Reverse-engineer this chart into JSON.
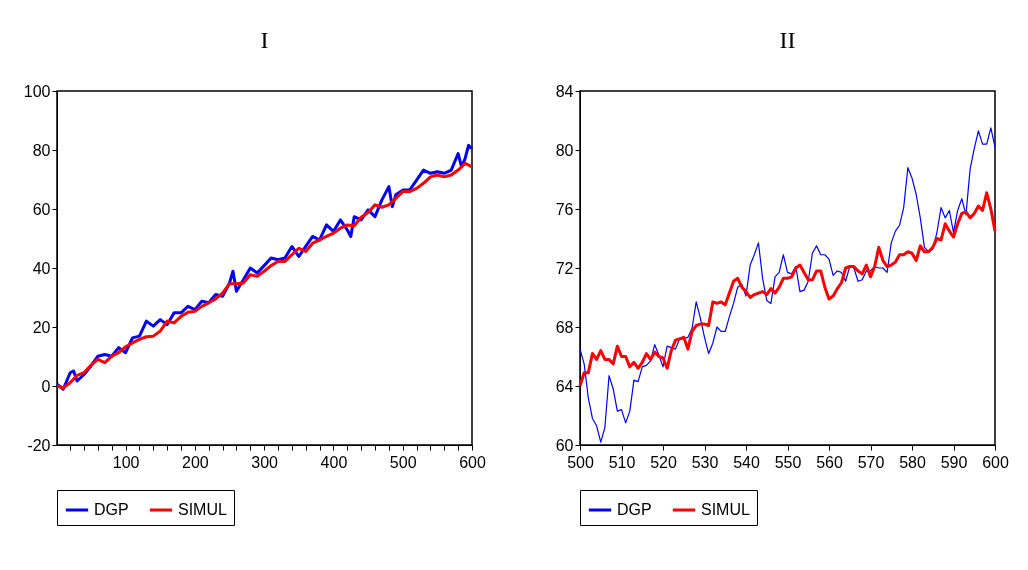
{
  "chart_data": [
    {
      "type": "line",
      "title": "I",
      "x": [
        1,
        10,
        20,
        25,
        30,
        40,
        50,
        60,
        70,
        80,
        90,
        100,
        110,
        120,
        130,
        140,
        150,
        160,
        170,
        180,
        190,
        200,
        210,
        220,
        230,
        240,
        250,
        255,
        260,
        270,
        280,
        290,
        300,
        310,
        320,
        330,
        340,
        350,
        360,
        370,
        380,
        390,
        400,
        410,
        420,
        425,
        430,
        440,
        450,
        460,
        470,
        480,
        485,
        490,
        500,
        510,
        520,
        530,
        540,
        550,
        560,
        570,
        580,
        585,
        590,
        595,
        600
      ],
      "series": [
        {
          "name": "DGP",
          "color": "#0000ff",
          "values": [
            0.6,
            -1.1,
            4.5,
            5.1,
            1.7,
            3.9,
            6.8,
            10.1,
            10.7,
            10.1,
            13,
            11.3,
            16.3,
            16.9,
            22.0,
            20.3,
            22.5,
            20.8,
            24.8,
            24.8,
            27.0,
            25.9,
            28.7,
            28.2,
            31.0,
            30.4,
            34.9,
            38.9,
            32.1,
            36.0,
            40.0,
            38.3,
            40.8,
            43.4,
            42.8,
            43.4,
            47.3,
            43.9,
            47.3,
            50.7,
            49.5,
            54.6,
            52.4,
            56.3,
            52.9,
            50.7,
            57.4,
            56.3,
            59.7,
            57.4,
            63.1,
            67.6,
            60.8,
            64.8,
            66.4,
            66.4,
            69.8,
            73.2,
            72.1,
            72.6,
            72.1,
            73.2,
            78.8,
            74.3,
            77.1,
            81.6,
            80.5
          ]
        },
        {
          "name": "SIMUL",
          "color": "#ff0000",
          "x": [
            1,
            10,
            20,
            30,
            40,
            50,
            60,
            70,
            80,
            90,
            100,
            110,
            120,
            130,
            140,
            150,
            160,
            170,
            180,
            190,
            200,
            210,
            220,
            230,
            240,
            250,
            260,
            270,
            280,
            290,
            300,
            310,
            320,
            330,
            340,
            350,
            360,
            370,
            380,
            390,
            400,
            410,
            420,
            430,
            440,
            450,
            460,
            470,
            480,
            490,
            500,
            510,
            520,
            530,
            540,
            550,
            560,
            570,
            580,
            590,
            600
          ],
          "values": [
            0,
            -0.6,
            1.1,
            3.6,
            4.5,
            7.0,
            9.0,
            7.9,
            10.1,
            11.3,
            13.3,
            14.6,
            15.8,
            16.7,
            16.9,
            18.6,
            22.0,
            21.4,
            23.6,
            25.0,
            25.3,
            27.0,
            28.2,
            29.5,
            31.5,
            34.7,
            34.7,
            34.9,
            37.7,
            37.2,
            38.9,
            40.8,
            42.2,
            42.2,
            44.5,
            46.7,
            45.6,
            48.4,
            49.5,
            50.7,
            51.8,
            53.5,
            54.6,
            54.3,
            57.2,
            58.8,
            61.4,
            60.6,
            61.4,
            63.6,
            65.9,
            65.9,
            67.0,
            68.7,
            70.9,
            71.5,
            70.9,
            71.5,
            73.2,
            75.5,
            74.3
          ]
        }
      ],
      "xlim": [
        1,
        600
      ],
      "xticks": [
        {
          "value": 20,
          "label": null
        },
        {
          "value": 40,
          "label": null
        },
        {
          "value": 60,
          "label": null
        },
        {
          "value": 80,
          "label": null
        },
        100,
        {
          "value": 120,
          "label": null
        },
        {
          "value": 140,
          "label": null
        },
        {
          "value": 160,
          "label": null
        },
        {
          "value": 180,
          "label": null
        },
        200,
        {
          "value": 220,
          "label": null
        },
        {
          "value": 240,
          "label": null
        },
        {
          "value": 260,
          "label": null
        },
        {
          "value": 280,
          "label": null
        },
        300,
        {
          "value": 320,
          "label": null
        },
        {
          "value": 340,
          "label": null
        },
        {
          "value": 360,
          "label": null
        },
        {
          "value": 380,
          "label": null
        },
        400,
        {
          "value": 420,
          "label": null
        },
        {
          "value": 440,
          "label": null
        },
        {
          "value": 460,
          "label": null
        },
        {
          "value": 480,
          "label": null
        },
        500,
        {
          "value": 520,
          "label": null
        },
        {
          "value": 540,
          "label": null
        },
        {
          "value": 560,
          "label": null
        },
        {
          "value": 580,
          "label": null
        },
        600
      ],
      "ylim": [
        -20,
        100
      ],
      "yticks": [
        -20,
        0,
        20,
        40,
        60,
        80,
        100
      ],
      "grid": false,
      "legend": "bottom"
    },
    {
      "type": "line",
      "title": "II",
      "x": [
        500,
        501,
        502,
        503,
        504,
        505,
        506,
        507,
        508,
        509,
        510,
        511,
        512,
        513,
        514,
        515,
        516,
        517,
        518,
        519,
        520,
        521,
        522,
        523,
        524,
        525,
        526,
        527,
        528,
        529,
        530,
        531,
        532,
        533,
        534,
        535,
        536,
        537,
        538,
        539,
        540,
        541,
        542,
        543,
        544,
        545,
        546,
        547,
        548,
        549,
        550,
        551,
        552,
        553,
        554,
        555,
        556,
        557,
        558,
        559,
        560,
        561,
        562,
        563,
        564,
        565,
        566,
        567,
        568,
        569,
        570,
        571,
        572,
        573,
        574,
        575,
        576,
        577,
        578,
        579,
        580,
        581,
        582,
        583,
        584,
        585,
        586,
        587,
        588,
        589,
        590,
        591,
        592,
        593,
        594,
        595,
        596,
        597,
        598,
        599,
        600
      ],
      "series": [
        {
          "name": "DGP",
          "color": "#0000ff",
          "values": [
            66.5,
            65.5,
            63.2,
            61.8,
            61.3,
            60.2,
            61.2,
            64.7,
            63.8,
            62.3,
            62.4,
            61.5,
            62.3,
            64.4,
            64.3,
            65.3,
            65.4,
            65.7,
            66.8,
            66.1,
            65.3,
            66.7,
            66.6,
            66.5,
            67.2,
            67.2,
            67.3,
            67.9,
            69.7,
            68.6,
            67.3,
            66.2,
            66.9,
            68.0,
            67.7,
            67.7,
            68.7,
            69.6,
            70.7,
            70.9,
            70.1,
            72.2,
            72.9,
            73.7,
            71.3,
            69.8,
            69.6,
            71.4,
            71.7,
            72.9,
            71.7,
            71.6,
            72.1,
            70.4,
            70.5,
            71.1,
            73.0,
            73.5,
            72.9,
            72.9,
            72.6,
            71.5,
            71.8,
            71.7,
            71.1,
            72.1,
            72.0,
            71.1,
            71.2,
            71.8,
            71.8,
            72.1,
            72.0,
            72.0,
            71.7,
            73.7,
            74.5,
            74.9,
            76.1,
            78.8,
            78.1,
            77.0,
            75.4,
            73.4,
            73.1,
            73.3,
            74.4,
            76.1,
            75.4,
            75.9,
            74.4,
            75.9,
            76.7,
            75.6,
            78.7,
            80.1,
            81.3,
            80.4,
            80.4,
            81.5,
            80.2
          ]
        },
        {
          "name": "SIMUL",
          "color": "#ff0000",
          "values": [
            64.0,
            64.9,
            64.9,
            66.2,
            65.8,
            66.4,
            65.8,
            65.8,
            65.5,
            66.7,
            66.0,
            66.0,
            65.3,
            65.6,
            65.2,
            65.6,
            66.2,
            65.8,
            66.3,
            66.0,
            65.9,
            65.2,
            66.4,
            67.1,
            67.2,
            67.3,
            66.5,
            67.7,
            68.1,
            68.2,
            68.2,
            68.1,
            69.7,
            69.6,
            69.7,
            69.5,
            70.3,
            71.1,
            71.3,
            70.7,
            70.4,
            70.0,
            70.2,
            70.3,
            70.4,
            70.2,
            70.6,
            70.3,
            70.7,
            71.3,
            71.3,
            71.4,
            72.0,
            72.2,
            71.7,
            71.2,
            71.2,
            71.8,
            71.8,
            70.7,
            69.9,
            70.1,
            70.6,
            71.0,
            72.0,
            72.1,
            72.1,
            71.8,
            71.6,
            72.2,
            71.4,
            72.1,
            73.4,
            72.5,
            72.1,
            72.2,
            72.4,
            72.9,
            72.9,
            73.1,
            73.0,
            72.5,
            73.5,
            73.1,
            73.1,
            73.4,
            74.0,
            73.9,
            75.0,
            74.5,
            74.1,
            75.0,
            75.7,
            75.8,
            75.4,
            75.7,
            76.2,
            75.9,
            77.1,
            76.0,
            74.5
          ]
        }
      ],
      "xlim": [
        500,
        600
      ],
      "xticks": [
        500,
        510,
        520,
        530,
        540,
        550,
        560,
        570,
        580,
        590,
        600
      ],
      "ylim": [
        60,
        84
      ],
      "yticks": [
        60,
        64,
        68,
        72,
        76,
        80,
        84
      ],
      "grid": false,
      "legend": "bottom"
    }
  ]
}
